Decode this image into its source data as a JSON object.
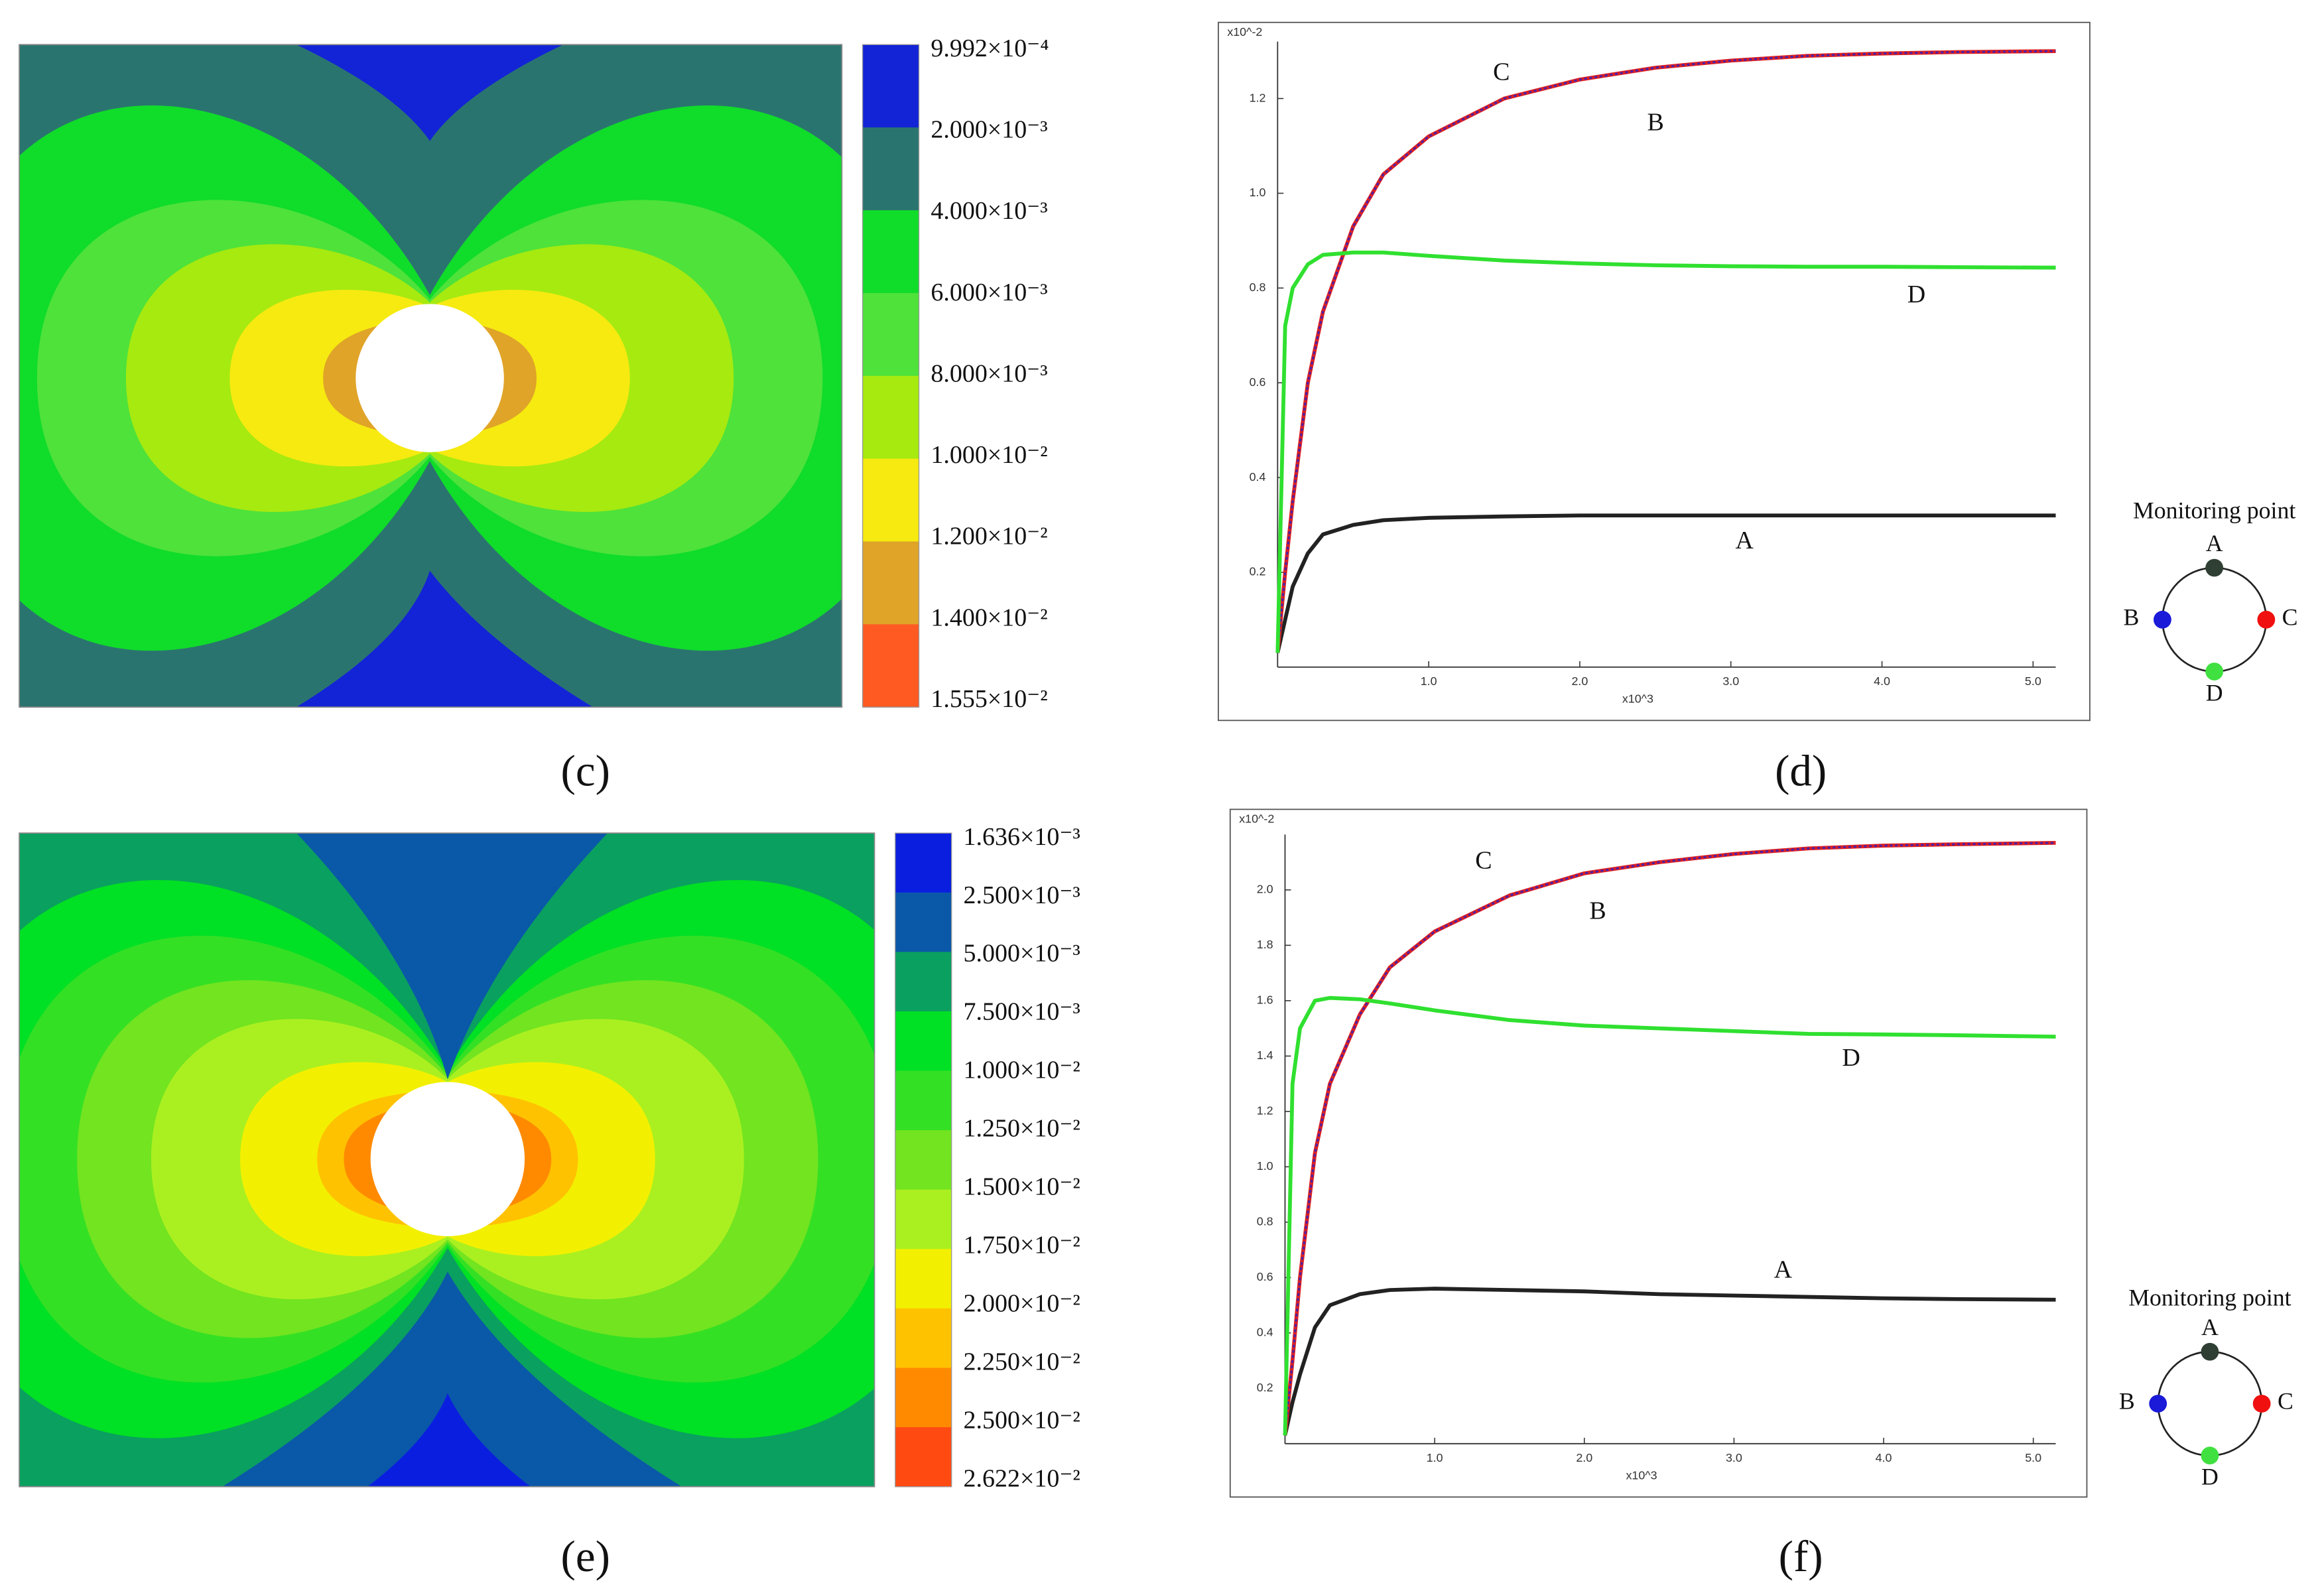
{
  "chart_data": [
    {
      "type": "contour",
      "panel_label": "(c)",
      "levels": [
        {
          "value": 0.0009992,
          "label": "9.992×10⁻⁴"
        },
        {
          "value": 0.002,
          "label": "2.000×10⁻³"
        },
        {
          "value": 0.004,
          "label": "4.000×10⁻³"
        },
        {
          "value": 0.006,
          "label": "6.000×10⁻³"
        },
        {
          "value": 0.008,
          "label": "8.000×10⁻³"
        },
        {
          "value": 0.01,
          "label": "1.000×10⁻²"
        },
        {
          "value": 0.012,
          "label": "1.200×10⁻²"
        },
        {
          "value": 0.014,
          "label": "1.400×10⁻²"
        },
        {
          "value": 0.01555,
          "label": "1.555×10⁻²"
        }
      ],
      "colors": [
        "#1224d6",
        "#2a7470",
        "#10dc2a",
        "#4ee23a",
        "#a6ea10",
        "#f6ea10",
        "#e0a428",
        "#ff5a22"
      ]
    },
    {
      "type": "line",
      "panel_label": "(d)",
      "ylabel": "x10^-2",
      "xlabel": "x10^3",
      "x": [
        0,
        0.05,
        0.1,
        0.2,
        0.3,
        0.5,
        0.7,
        1.0,
        1.5,
        2.0,
        2.5,
        3.0,
        3.5,
        4.0,
        4.5,
        5.15
      ],
      "xlim": [
        0,
        5.15
      ],
      "xticks": [
        {
          "value": 1,
          "label": "1.0"
        },
        {
          "value": 2,
          "label": "2.0"
        },
        {
          "value": 3,
          "label": "3.0"
        },
        {
          "value": 4,
          "label": "4.0"
        },
        {
          "value": 5,
          "label": "5.0"
        }
      ],
      "ylim": [
        0,
        1.32
      ],
      "yticks": [
        0.2,
        0.4,
        0.6,
        0.8,
        {
          "value": 1,
          "label": "1.0"
        },
        1.2
      ],
      "series": [
        {
          "name": "A",
          "color": "#222222",
          "values": [
            0.03,
            0.1,
            0.17,
            0.24,
            0.28,
            0.3,
            0.31,
            0.315,
            0.318,
            0.32,
            0.32,
            0.32,
            0.32,
            0.32,
            0.32,
            0.32
          ]
        },
        {
          "name": "C",
          "color": "#e02020",
          "values": [
            0.03,
            0.2,
            0.35,
            0.6,
            0.75,
            0.93,
            1.04,
            1.12,
            1.2,
            1.24,
            1.265,
            1.28,
            1.29,
            1.295,
            1.298,
            1.3
          ]
        },
        {
          "name": "B",
          "color": "#2020d0",
          "values": [
            0.03,
            0.2,
            0.35,
            0.6,
            0.75,
            0.93,
            1.04,
            1.12,
            1.2,
            1.24,
            1.265,
            1.28,
            1.29,
            1.295,
            1.298,
            1.3
          ]
        },
        {
          "name": "D",
          "color": "#30e030",
          "values": [
            0.03,
            0.72,
            0.8,
            0.85,
            0.87,
            0.875,
            0.875,
            0.868,
            0.858,
            0.852,
            0.848,
            0.846,
            0.845,
            0.845,
            0.844,
            0.843
          ]
        }
      ],
      "monitor": {
        "title": "Monitoring point",
        "points": [
          {
            "label": "A",
            "color": "#2f3f33"
          },
          {
            "label": "B",
            "color": "#1a1ad8"
          },
          {
            "label": "C",
            "color": "#f01010"
          },
          {
            "label": "D",
            "color": "#40e040"
          }
        ]
      }
    },
    {
      "type": "contour",
      "panel_label": "(e)",
      "levels": [
        {
          "value": 0.001636,
          "label": "1.636×10⁻³"
        },
        {
          "value": 0.0025,
          "label": "2.500×10⁻³"
        },
        {
          "value": 0.005,
          "label": "5.000×10⁻³"
        },
        {
          "value": 0.0075,
          "label": "7.500×10⁻³"
        },
        {
          "value": 0.01,
          "label": "1.000×10⁻²"
        },
        {
          "value": 0.0125,
          "label": "1.250×10⁻²"
        },
        {
          "value": 0.015,
          "label": "1.500×10⁻²"
        },
        {
          "value": 0.0175,
          "label": "1.750×10⁻²"
        },
        {
          "value": 0.02,
          "label": "2.000×10⁻²"
        },
        {
          "value": 0.0225,
          "label": "2.250×10⁻²"
        },
        {
          "value": 0.025,
          "label": "2.500×10⁻²"
        },
        {
          "value": 0.02622,
          "label": "2.622×10⁻²"
        }
      ],
      "colors": [
        "#0a1ee0",
        "#0a58a8",
        "#0aa060",
        "#00e024",
        "#34e024",
        "#72e420",
        "#aaf020",
        "#f2f000",
        "#ffc200",
        "#ff8a00",
        "#ff4a12"
      ]
    },
    {
      "type": "line",
      "panel_label": "(f)",
      "ylabel": "x10^-2",
      "xlabel": "x10^3",
      "x": [
        0,
        0.05,
        0.1,
        0.2,
        0.3,
        0.5,
        0.7,
        1.0,
        1.5,
        2.0,
        2.5,
        3.0,
        3.5,
        4.0,
        4.5,
        5.15
      ],
      "xlim": [
        0,
        5.15
      ],
      "xticks": [
        {
          "value": 1,
          "label": "1.0"
        },
        {
          "value": 2,
          "label": "2.0"
        },
        {
          "value": 3,
          "label": "3.0"
        },
        {
          "value": 4,
          "label": "4.0"
        },
        {
          "value": 5,
          "label": "5.0"
        }
      ],
      "ylim": [
        0,
        2.2
      ],
      "yticks": [
        0.2,
        0.4,
        0.6,
        0.8,
        {
          "value": 1,
          "label": "1.0"
        },
        1.2,
        1.4,
        1.6,
        1.8,
        {
          "value": 2,
          "label": "2.0"
        }
      ],
      "series": [
        {
          "name": "A",
          "color": "#222222",
          "values": [
            0.03,
            0.15,
            0.25,
            0.42,
            0.5,
            0.54,
            0.555,
            0.56,
            0.555,
            0.55,
            0.54,
            0.535,
            0.53,
            0.525,
            0.522,
            0.52
          ]
        },
        {
          "name": "C",
          "color": "#e02020",
          "values": [
            0.03,
            0.3,
            0.6,
            1.05,
            1.3,
            1.55,
            1.72,
            1.85,
            1.98,
            2.06,
            2.1,
            2.13,
            2.15,
            2.16,
            2.165,
            2.17
          ]
        },
        {
          "name": "B",
          "color": "#2020d0",
          "values": [
            0.03,
            0.3,
            0.6,
            1.05,
            1.3,
            1.55,
            1.72,
            1.85,
            1.98,
            2.06,
            2.1,
            2.13,
            2.15,
            2.16,
            2.165,
            2.17
          ]
        },
        {
          "name": "D",
          "color": "#30e030",
          "values": [
            0.03,
            1.3,
            1.5,
            1.6,
            1.61,
            1.605,
            1.59,
            1.565,
            1.53,
            1.51,
            1.5,
            1.49,
            1.48,
            1.478,
            1.475,
            1.47
          ]
        }
      ],
      "monitor": {
        "title": "Monitoring point",
        "points": [
          {
            "label": "A",
            "color": "#2f3f33"
          },
          {
            "label": "B",
            "color": "#1a1ad8"
          },
          {
            "label": "C",
            "color": "#f01010"
          },
          {
            "label": "D",
            "color": "#40e040"
          }
        ]
      }
    }
  ]
}
